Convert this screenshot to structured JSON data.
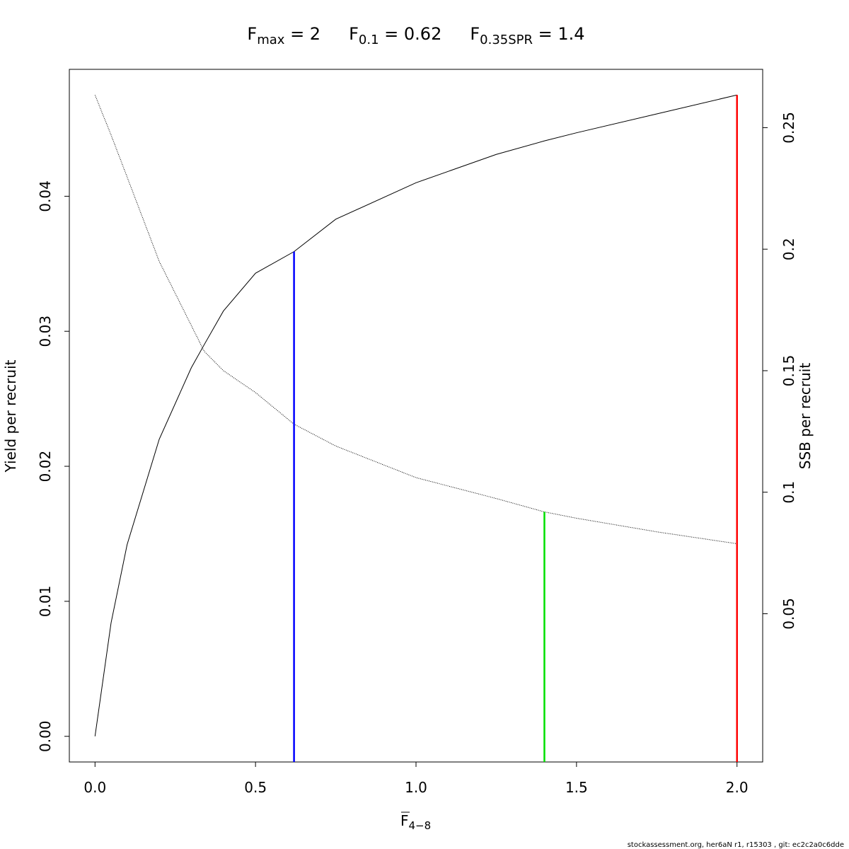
{
  "chart_data": {
    "type": "line",
    "title_parts": [
      {
        "base": "F",
        "sub": "max",
        "rest": " = 2"
      },
      {
        "base": "F",
        "sub": "0.1",
        "rest": " = 0.62"
      },
      {
        "base": "F",
        "sub": "0.35SPR",
        "rest": " = 1.4"
      }
    ],
    "x_label": "F",
    "x_label_sub": "4−8",
    "y_label": "Yield per recruit",
    "y2_label": "SSB per recruit",
    "footer": "stockassessment.org, her6aN  r1, r15303 , git: ec2c2a0c6dde",
    "x": [
      0,
      0.05,
      0.1,
      0.2,
      0.3,
      0.34,
      0.4,
      0.5,
      0.62,
      0.75,
      1.0,
      1.25,
      1.4,
      1.5,
      1.75,
      2.0
    ],
    "series": [
      {
        "color": "#000000",
        "style": "solid",
        "axis": "y",
        "values": [
          0,
          0.0084,
          0.0142,
          0.022,
          0.0273,
          0.029,
          0.0315,
          0.0343,
          0.0359,
          0.0383,
          0.041,
          0.0431,
          0.0441,
          0.0447,
          0.0461,
          0.0475
        ]
      },
      {
        "color": "#000000",
        "style": "dotted",
        "axis": "y2",
        "values": [
          0.2634,
          0.247,
          0.2297,
          0.195,
          0.1686,
          0.158,
          0.15,
          0.141,
          0.128,
          0.119,
          0.106,
          0.0974,
          0.0919,
          0.0893,
          0.0837,
          0.0788
        ]
      }
    ],
    "reference_lines": [
      {
        "x": 0.62,
        "y": 0.0359,
        "axis": "y",
        "color": "#0000ff"
      },
      {
        "x": 1.4,
        "y": 0.0919,
        "axis": "y2",
        "color": "#00e000"
      },
      {
        "x": 2.0,
        "y": 0.0475,
        "axis": "y",
        "color": "#ff0000"
      }
    ],
    "xlim": [
      -0.08,
      2.08
    ],
    "xticks": [
      {
        "value": 0,
        "label": "0.0"
      },
      0.5,
      {
        "value": 1,
        "label": "1.0"
      },
      1.5,
      {
        "value": 2,
        "label": "2.0"
      }
    ],
    "ylim": [
      -0.0019,
      0.0494
    ],
    "yticks": [
      {
        "value": 0,
        "label": "0.00"
      },
      0.01,
      0.02,
      0.03,
      0.04
    ],
    "y2lim": [
      -0.011,
      0.274
    ],
    "y2ticks": [
      0.05,
      0.1,
      0.15,
      0.2,
      0.25
    ]
  }
}
